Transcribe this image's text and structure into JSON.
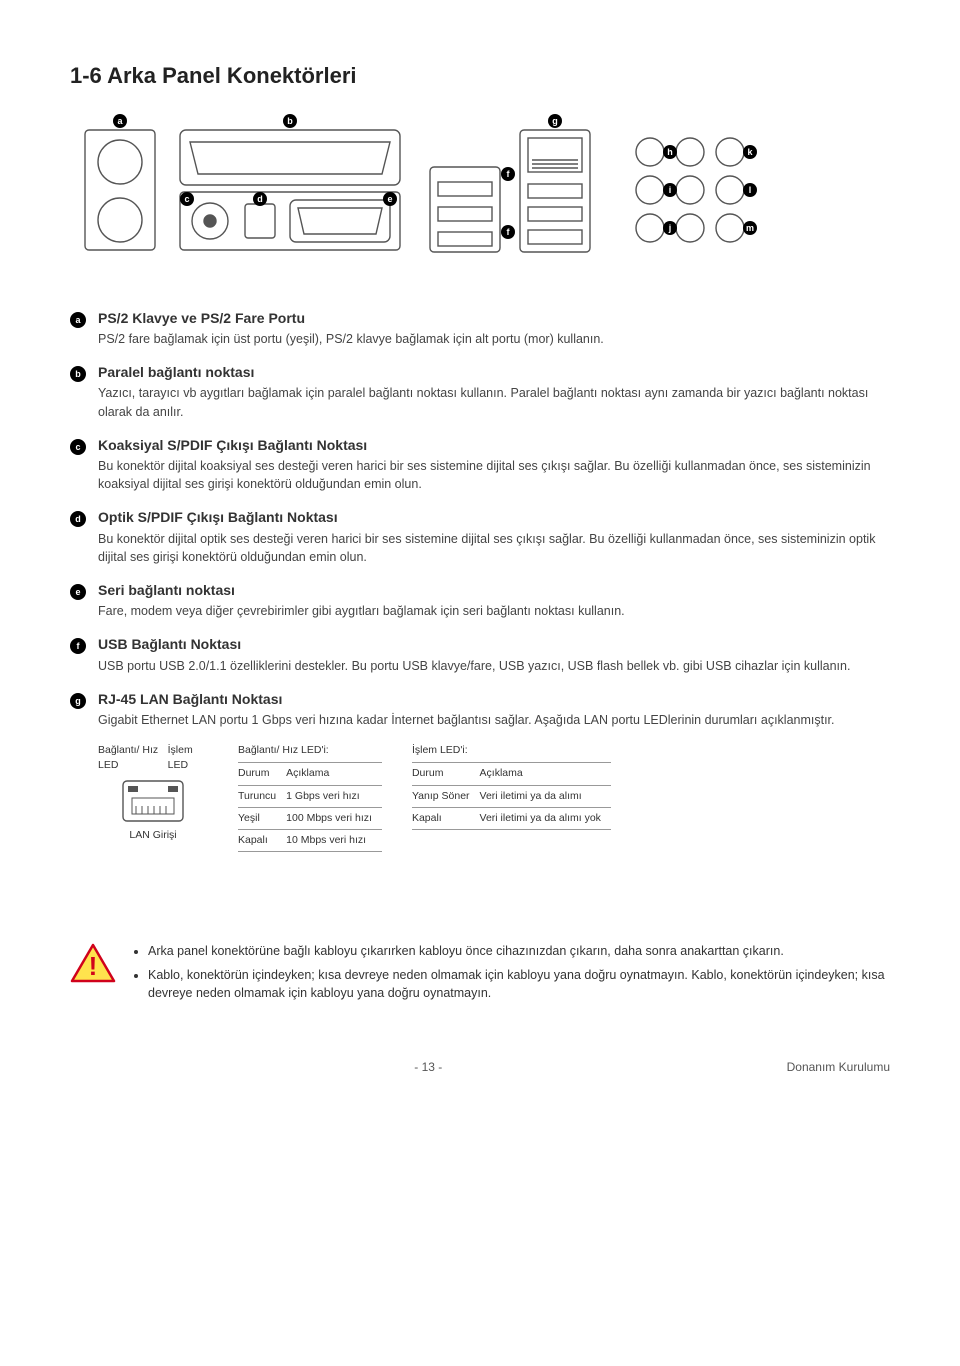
{
  "title": "1-6   Arka Panel Konektörleri",
  "diagram": {
    "callouts": [
      "a",
      "b",
      "c",
      "d",
      "e",
      "f",
      "f",
      "g",
      "h",
      "i",
      "j",
      "k",
      "l",
      "m"
    ],
    "callout_bg": "#000000",
    "callout_fg": "#ffffff",
    "stroke": "#555555"
  },
  "sections": [
    {
      "bullet": "a",
      "title": "PS/2 Klavye ve PS/2 Fare Portu",
      "body": "PS/2 fare bağlamak için üst portu (yeşil), PS/2 klavye bağlamak için alt portu (mor) kullanın."
    },
    {
      "bullet": "b",
      "title": "Paralel bağlantı noktası",
      "body": "Yazıcı, tarayıcı vb aygıtları bağlamak için paralel bağlantı noktası kullanın. Paralel bağlantı noktası aynı zamanda bir yazıcı bağlantı noktası olarak da anılır."
    },
    {
      "bullet": "c",
      "title": "Koaksiyal S/PDIF Çıkışı Bağlantı Noktası",
      "body": "Bu konektör dijital koaksiyal ses desteği veren harici bir ses sistemine dijital ses çıkışı sağlar. Bu özelliği kullanmadan önce, ses sisteminizin koaksiyal dijital ses girişi konektörü olduğundan emin olun."
    },
    {
      "bullet": "d",
      "title": "Optik S/PDIF Çıkışı Bağlantı Noktası",
      "body": "Bu konektör dijital optik ses desteği veren harici bir ses sistemine dijital ses çıkışı sağlar. Bu özelliği kullanmadan önce, ses sisteminizin optik dijital ses girişi konektörü olduğundan emin olun."
    },
    {
      "bullet": "e",
      "title": "Seri bağlantı noktası",
      "body": "Fare, modem veya diğer çevrebirimler gibi aygıtları bağlamak için seri bağlantı noktası kullanın."
    },
    {
      "bullet": "f",
      "title": "USB Bağlantı Noktası",
      "body": "USB portu USB 2.0/1.1 özelliklerini destekler. Bu portu USB klavye/fare, USB yazıcı, USB flash bellek vb. gibi USB cihazlar için kullanın."
    },
    {
      "bullet": "g",
      "title": "RJ-45 LAN Bağlantı Noktası",
      "body": "Gigabit Ethernet LAN portu 1 Gbps veri hızına kadar İnternet bağlantısı sağlar. Aşağıda LAN portu LEDlerinin durumları açıklanmıştır."
    }
  ],
  "led_block": {
    "left": {
      "label_link": "Bağlantı/ Hız LED",
      "label_act": "İşlem LED",
      "lan_caption": "LAN Girişi"
    },
    "link_table": {
      "title": "Bağlantı/ Hız LED'i:",
      "columns": [
        "Durum",
        "Açıklama"
      ],
      "rows": [
        [
          "Turuncu",
          "1 Gbps veri hızı"
        ],
        [
          "Yeşil",
          "100 Mbps veri hızı"
        ],
        [
          "Kapalı",
          "10 Mbps veri hızı"
        ]
      ]
    },
    "act_table": {
      "title": "İşlem LED'i:",
      "columns": [
        "Durum",
        "Açıklama"
      ],
      "rows": [
        [
          "Yanıp Söner",
          "Veri iletimi ya da alımı"
        ],
        [
          "Kapalı",
          "Veri iletimi ya da alımı yok"
        ]
      ]
    }
  },
  "warning": {
    "items": [
      "Arka panel konektörüne bağlı kabloyu çıkarırken kabloyu önce cihazınızdan çıkarın, daha sonra anakarttan çıkarın.",
      "Kablo, konektörün içindeyken; kısa devreye neden olmamak için kabloyu yana doğru oynatmayın. Kablo, konektörün içindeyken; kısa devreye neden olmamak için kabloyu yana doğru oynatmayın."
    ],
    "triangle_fill": "#ffe34d",
    "triangle_stroke": "#d0021b",
    "bang_color": "#d0021b"
  },
  "footer": {
    "page": "- 13 -",
    "right": "Donanım Kurulumu"
  }
}
